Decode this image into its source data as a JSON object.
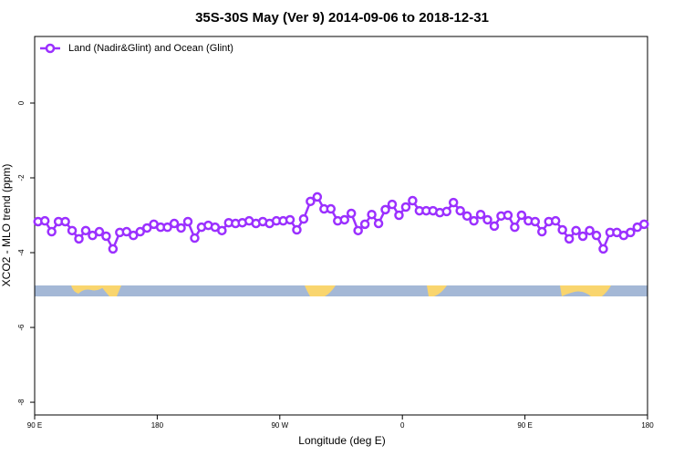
{
  "chart_data": {
    "type": "line",
    "title": "35S-30S May (Ver 9)   2014-09-06 to 2018-12-31",
    "xlabel": "Longitude (deg E)",
    "ylabel": "XCO2 - MLO trend (ppm)",
    "xlim": [
      90,
      540
    ],
    "ylim": [
      -8.34,
      1.78
    ],
    "xticks": [
      {
        "value": 90,
        "label": "90 E"
      },
      {
        "value": 180,
        "label": "180"
      },
      {
        "value": 270,
        "label": "90 W"
      },
      {
        "value": 360,
        "label": "0"
      },
      {
        "value": 450,
        "label": "90 E"
      },
      {
        "value": 540,
        "label": "180"
      }
    ],
    "yticks": [
      0,
      -2,
      -4,
      -6,
      -8
    ],
    "legend": "top-left",
    "x": [
      92.5,
      97.5,
      102.5,
      107.5,
      112.5,
      117.5,
      122.5,
      127.5,
      132.5,
      137.5,
      142.5,
      147.5,
      152.5,
      157.5,
      162.5,
      167.5,
      172.5,
      177.5,
      182.5,
      187.5,
      192.5,
      197.5,
      202.5,
      207.5,
      212.5,
      217.5,
      222.5,
      227.5,
      232.5,
      237.5,
      242.5,
      247.5,
      252.5,
      257.5,
      262.5,
      267.5,
      272.5,
      277.5,
      282.5,
      287.5,
      292.5,
      297.5,
      302.5,
      307.5,
      312.5,
      317.5,
      322.5,
      327.5,
      332.5,
      337.5,
      342.5,
      347.5,
      352.5,
      357.5,
      362.5,
      367.5,
      372.5,
      377.5,
      382.5,
      387.5,
      392.5,
      397.5,
      402.5,
      407.5,
      412.5,
      417.5,
      422.5,
      427.5,
      432.5,
      437.5,
      442.5,
      447.5,
      452.5,
      457.5,
      462.5,
      467.5,
      472.5,
      477.5,
      482.5,
      487.5,
      492.5,
      497.5,
      502.5,
      507.5,
      512.5,
      517.5,
      522.5,
      527.5,
      532.5,
      537.5
    ],
    "series": [
      {
        "name": "Land (Nadir&Glint) and Ocean (Glint)",
        "color": "#9b30ff",
        "values": [
          -3.17,
          -3.15,
          -3.44,
          -3.17,
          -3.17,
          -3.41,
          -3.63,
          -3.41,
          -3.54,
          -3.44,
          -3.56,
          -3.9,
          -3.46,
          -3.44,
          -3.54,
          -3.44,
          -3.34,
          -3.24,
          -3.32,
          -3.32,
          -3.22,
          -3.34,
          -3.17,
          -3.61,
          -3.32,
          -3.27,
          -3.32,
          -3.41,
          -3.2,
          -3.22,
          -3.2,
          -3.15,
          -3.22,
          -3.17,
          -3.22,
          -3.15,
          -3.15,
          -3.12,
          -3.39,
          -3.1,
          -2.63,
          -2.51,
          -2.83,
          -2.83,
          -3.15,
          -3.12,
          -2.95,
          -3.41,
          -3.24,
          -2.98,
          -3.22,
          -2.85,
          -2.71,
          -3.0,
          -2.78,
          -2.61,
          -2.88,
          -2.88,
          -2.88,
          -2.93,
          -2.9,
          -2.66,
          -2.88,
          -3.02,
          -3.15,
          -2.98,
          -3.12,
          -3.29,
          -3.02,
          -3.0,
          -3.32,
          -3.0,
          -3.15,
          -3.17,
          -3.44,
          -3.17,
          -3.15,
          -3.39,
          -3.63,
          -3.41,
          -3.56,
          -3.41,
          -3.54,
          -3.9,
          -3.46,
          -3.46,
          -3.54,
          -3.46,
          -3.32,
          -3.24
        ]
      }
    ]
  }
}
